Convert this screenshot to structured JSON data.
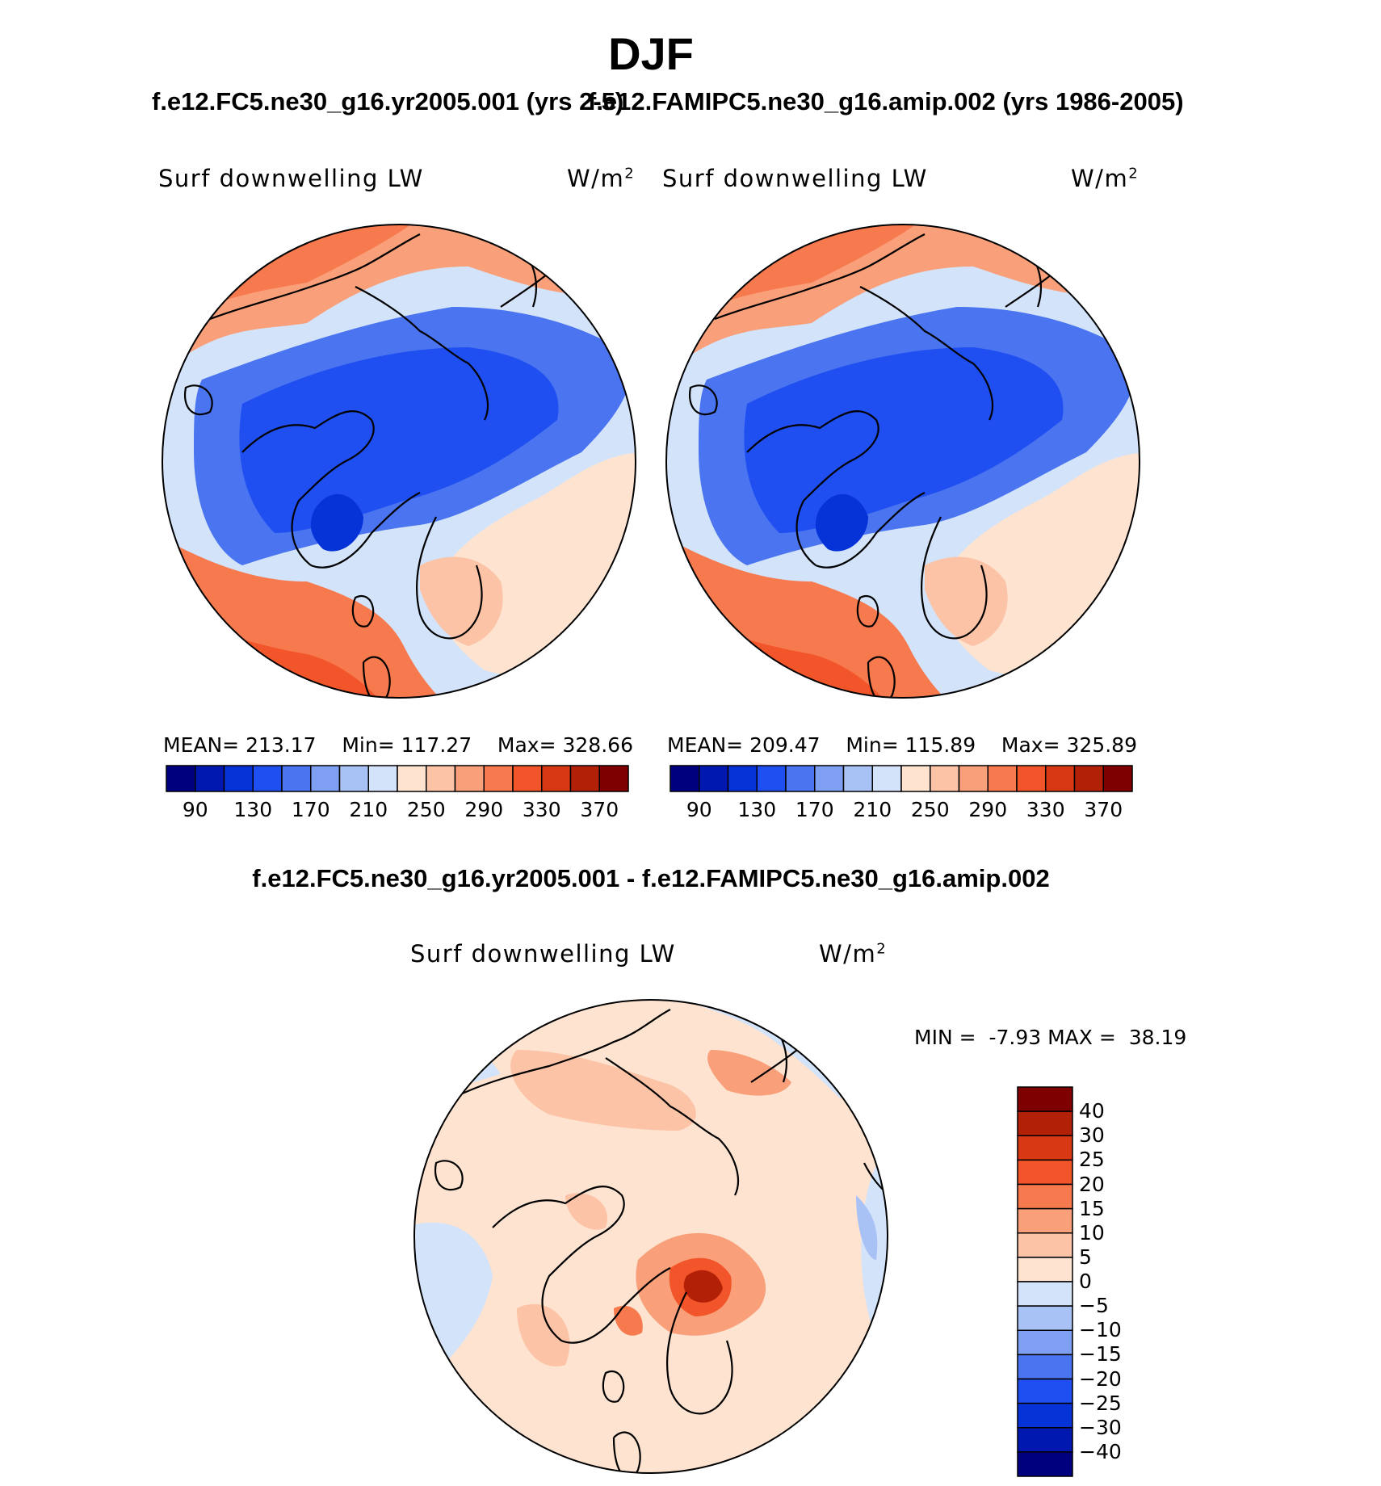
{
  "title": "DJF",
  "case_titles": {
    "left": "f.e12.FC5.ne30_g16.yr2005.001 (yrs 2-5)",
    "right": "f.e12.FAMIPC5.ne30_g16.amip.002 (yrs 1986-2005)"
  },
  "diff_title": "f.e12.FC5.ne30_g16.yr2005.001 - f.e12.FAMIPC5.ne30_g16.amip.002",
  "panels": [
    {
      "variable": "Surf downwelling LW",
      "units": "W/m",
      "units_sup": "2",
      "mean_label": "MEAN=",
      "mean": "213.17",
      "min_label": "Min=",
      "min": "117.27",
      "max_label": "Max=",
      "max": "328.66"
    },
    {
      "variable": "Surf downwelling LW",
      "units": "W/m",
      "units_sup": "2",
      "mean_label": "MEAN=",
      "mean": "209.47",
      "min_label": "Min=",
      "min": "115.89",
      "max_label": "Max=",
      "max": "325.89"
    },
    {
      "variable": "Surf downwelling LW",
      "units": "W/m",
      "units_sup": "2",
      "min_label": "MIN =",
      "min": "-7.93",
      "max_label": "MAX =",
      "max": "38.19"
    }
  ],
  "colorbar_abs": {
    "colors": [
      "#00007f",
      "#0017b0",
      "#0533d8",
      "#1f4ff0",
      "#4a74f0",
      "#7fa0f2",
      "#a9c2f5",
      "#d2e3fa",
      "#fde3d0",
      "#fcc3a6",
      "#f9a07a",
      "#f7794e",
      "#f2552a",
      "#d93814",
      "#b32008",
      "#7f0000"
    ],
    "tick_labels": [
      "90",
      "130",
      "170",
      "210",
      "250",
      "290",
      "330",
      "370"
    ]
  },
  "colorbar_diff": {
    "colors": [
      "#7f0000",
      "#b32008",
      "#d93814",
      "#f2552a",
      "#f7794e",
      "#f9a07a",
      "#fcc3a6",
      "#fde3d0",
      "#d2e3fa",
      "#a9c2f5",
      "#7fa0f2",
      "#4a74f0",
      "#1f4ff0",
      "#0533d8",
      "#0017b0",
      "#00007f"
    ],
    "tick_labels": [
      "40",
      "30",
      "25",
      "20",
      "15",
      "10",
      "5",
      "0",
      "−5",
      "−10",
      "−15",
      "−20",
      "−25",
      "−30",
      "−40"
    ]
  },
  "chart_data": [
    {
      "type": "heatmap",
      "projection": "north polar stereographic",
      "title": "Surf downwelling LW",
      "units": "W/m2",
      "case": "f.e12.FC5.ne30_g16.yr2005.001 (yrs 2-5)",
      "mean": 213.17,
      "min": 117.27,
      "max": 328.66,
      "levels": [
        90,
        110,
        130,
        150,
        170,
        190,
        210,
        230,
        250,
        270,
        290,
        310,
        330,
        350,
        370
      ]
    },
    {
      "type": "heatmap",
      "projection": "north polar stereographic",
      "title": "Surf downwelling LW",
      "units": "W/m2",
      "case": "f.e12.FAMIPC5.ne30_g16.amip.002 (yrs 1986-2005)",
      "mean": 209.47,
      "min": 115.89,
      "max": 325.89,
      "levels": [
        90,
        110,
        130,
        150,
        170,
        190,
        210,
        230,
        250,
        270,
        290,
        310,
        330,
        350,
        370
      ]
    },
    {
      "type": "heatmap",
      "projection": "north polar stereographic",
      "title": "Surf downwelling LW",
      "units": "W/m2",
      "case": "f.e12.FC5.ne30_g16.yr2005.001 - f.e12.FAMIPC5.ne30_g16.amip.002",
      "min": -7.93,
      "max": 38.19,
      "levels": [
        -40,
        -30,
        -25,
        -20,
        -15,
        -10,
        -5,
        0,
        5,
        10,
        15,
        20,
        25,
        30,
        40
      ]
    }
  ]
}
